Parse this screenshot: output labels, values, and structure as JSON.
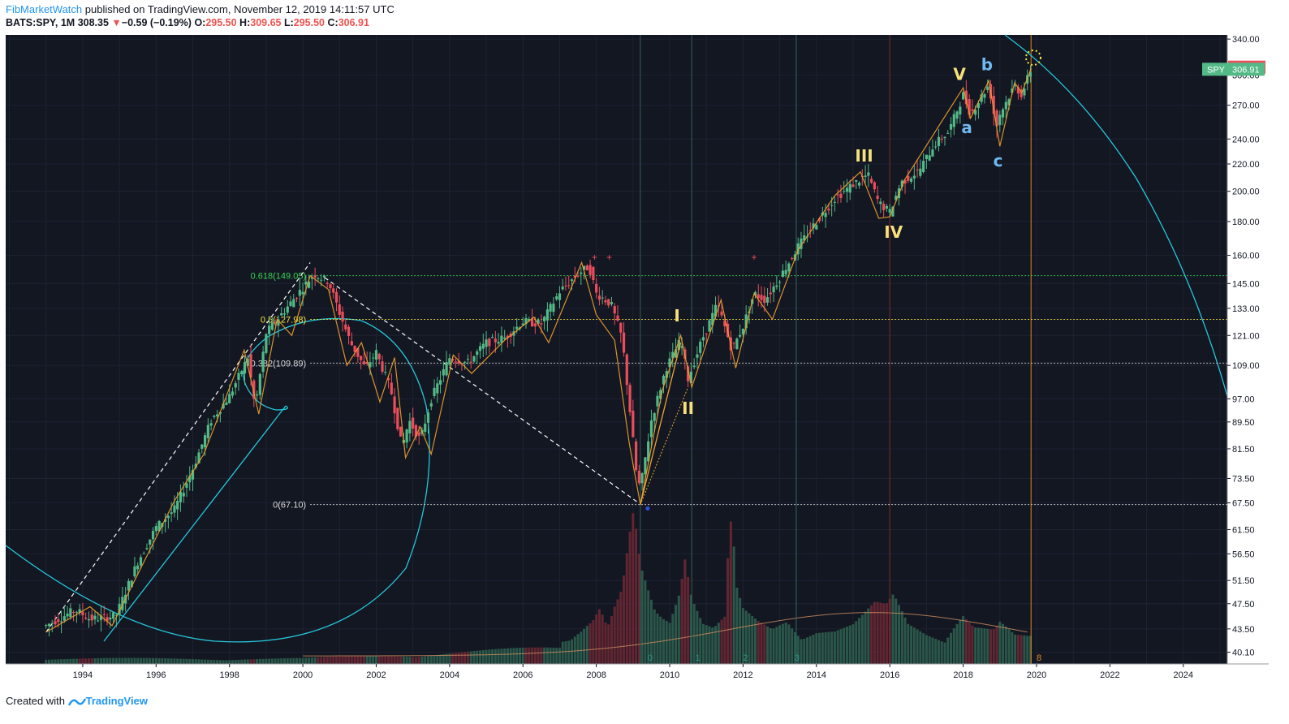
{
  "header": {
    "author": "FibMarketWatch",
    "published_text": " published on TradingView.com, November 12, 2019 14:11:57 UTC",
    "symbol": "BATS:SPY, 1M",
    "last": "308.35",
    "change_arrow": "▼",
    "change": "−0.59 (−0.19%)",
    "o_label": "O:",
    "o": "295.50",
    "h_label": "H:",
    "h": "309.65",
    "l_label": "L:",
    "l": "295.50",
    "c_label": "C:",
    "c": "306.91"
  },
  "footer": {
    "created_with": "Created with",
    "brand": "TradingView"
  },
  "colors": {
    "background": "#131722",
    "up": "#53b987",
    "down": "#eb4d5c",
    "wave": "#f0a030",
    "cyan": "#26c6da",
    "fib_green": "#39d353",
    "fib_yellow": "#f5e53d",
    "wave_label_yellow": "#f7e17d",
    "wave_label_blue": "#6fb8f0"
  },
  "chart_data": {
    "type": "candlestick",
    "ylabel": "",
    "xlabel": "",
    "log_scale": true,
    "ylim": [
      38.5,
      345
    ],
    "xlim": [
      1991.9,
      2025.2
    ],
    "x_ticks": [
      "1994",
      "1996",
      "1998",
      "2000",
      "2002",
      "2004",
      "2006",
      "2008",
      "2010",
      "2012",
      "2014",
      "2016",
      "2018",
      "2020",
      "2022",
      "2024"
    ],
    "y_ticks": [
      "340.00",
      "300.00",
      "270.00",
      "240.00",
      "220.00",
      "200.00",
      "180.00",
      "160.00",
      "145.00",
      "133.00",
      "121.00",
      "109.00",
      "97.00",
      "89.50",
      "81.50",
      "73.50",
      "67.50",
      "61.50",
      "56.50",
      "51.50",
      "47.50",
      "43.50",
      "40.10"
    ],
    "price_tags": [
      {
        "label": "308.35",
        "value": 308.35,
        "color": "#eb4d5c"
      },
      {
        "label": "SPY",
        "value_label": "306.91",
        "value": 306.91,
        "color": "#53b987"
      }
    ],
    "price_path": [
      [
        1993.0,
        44
      ],
      [
        1993.8,
        46.5
      ],
      [
        1994.2,
        45
      ],
      [
        1994.9,
        45.5
      ],
      [
        1995.5,
        55
      ],
      [
        1996.0,
        62
      ],
      [
        1996.5,
        66
      ],
      [
        1997.0,
        76
      ],
      [
        1997.5,
        90
      ],
      [
        1998.0,
        98
      ],
      [
        1998.5,
        112
      ],
      [
        1998.7,
        94
      ],
      [
        1999.0,
        122
      ],
      [
        1999.5,
        132
      ],
      [
        2000.0,
        143
      ],
      [
        2000.3,
        150
      ],
      [
        2000.7,
        146
      ],
      [
        2001.0,
        131
      ],
      [
        2001.3,
        118
      ],
      [
        2001.7,
        108
      ],
      [
        2002.0,
        114
      ],
      [
        2002.4,
        100
      ],
      [
        2002.7,
        82
      ],
      [
        2002.9,
        90
      ],
      [
        2003.2,
        84
      ],
      [
        2003.5,
        97
      ],
      [
        2004.0,
        112
      ],
      [
        2004.5,
        110
      ],
      [
        2005.0,
        118
      ],
      [
        2005.5,
        120
      ],
      [
        2006.0,
        127
      ],
      [
        2006.5,
        126
      ],
      [
        2007.0,
        141
      ],
      [
        2007.5,
        150
      ],
      [
        2007.8,
        154
      ],
      [
        2008.0,
        140
      ],
      [
        2008.4,
        135
      ],
      [
        2008.7,
        120
      ],
      [
        2008.9,
        95
      ],
      [
        2009.1,
        74
      ],
      [
        2009.2,
        71
      ],
      [
        2009.5,
        90
      ],
      [
        2009.9,
        108
      ],
      [
        2010.3,
        119
      ],
      [
        2010.5,
        104
      ],
      [
        2010.9,
        120
      ],
      [
        2011.3,
        135
      ],
      [
        2011.7,
        115
      ],
      [
        2012.0,
        125
      ],
      [
        2012.3,
        140
      ],
      [
        2012.6,
        137
      ],
      [
        2013.0,
        148
      ],
      [
        2013.5,
        165
      ],
      [
        2014.0,
        180
      ],
      [
        2014.5,
        195
      ],
      [
        2015.0,
        205
      ],
      [
        2015.4,
        212
      ],
      [
        2015.7,
        192
      ],
      [
        2016.0,
        186
      ],
      [
        2016.3,
        206
      ],
      [
        2016.8,
        215
      ],
      [
        2017.2,
        235
      ],
      [
        2017.6,
        246
      ],
      [
        2018.0,
        280
      ],
      [
        2018.2,
        262
      ],
      [
        2018.7,
        290
      ],
      [
        2018.9,
        250
      ],
      [
        2019.0,
        262
      ],
      [
        2019.4,
        289
      ],
      [
        2019.6,
        280
      ],
      [
        2019.85,
        306.9
      ]
    ],
    "wave_path": [
      [
        1993.0,
        43
      ],
      [
        1994.2,
        47
      ],
      [
        1994.8,
        44
      ],
      [
        1996.5,
        68
      ],
      [
        1997.3,
        80
      ],
      [
        1998.4,
        115
      ],
      [
        1998.8,
        92
      ],
      [
        1999.3,
        128
      ],
      [
        1999.7,
        121
      ],
      [
        2000.2,
        149
      ],
      [
        2000.7,
        142
      ],
      [
        2001.2,
        109
      ],
      [
        2001.6,
        118
      ],
      [
        2002.1,
        96
      ],
      [
        2002.5,
        112
      ],
      [
        2002.8,
        79
      ],
      [
        2003.2,
        88
      ],
      [
        2003.5,
        80
      ],
      [
        2004.1,
        113
      ],
      [
        2004.6,
        106
      ],
      [
        2005.5,
        119
      ],
      [
        2006.3,
        129
      ],
      [
        2006.7,
        118
      ],
      [
        2007.6,
        156
      ],
      [
        2008.0,
        130
      ],
      [
        2008.5,
        119
      ],
      [
        2008.9,
        83
      ],
      [
        2009.2,
        67.1
      ],
      [
        2009.8,
        100
      ],
      [
        2010.3,
        121
      ],
      [
        2010.6,
        101
      ],
      [
        2011.4,
        137
      ],
      [
        2011.8,
        108
      ],
      [
        2012.3,
        140
      ],
      [
        2012.8,
        128
      ],
      [
        2013.5,
        163
      ],
      [
        2014.5,
        197
      ],
      [
        2015.2,
        214
      ],
      [
        2015.7,
        182
      ],
      [
        2016.0,
        183
      ],
      [
        2016.4,
        208
      ],
      [
        2018.0,
        287
      ],
      [
        2018.2,
        258
      ],
      [
        2018.7,
        294
      ],
      [
        2019.0,
        234
      ],
      [
        2019.4,
        292
      ],
      [
        2019.6,
        282
      ],
      [
        2019.85,
        306.9
      ]
    ],
    "volume": [
      [
        2007.0,
        0.12
      ],
      [
        2007.3,
        0.14
      ],
      [
        2007.6,
        0.21
      ],
      [
        2007.9,
        0.3
      ],
      [
        2008.1,
        0.42
      ],
      [
        2008.3,
        0.3
      ],
      [
        2008.5,
        0.45
      ],
      [
        2008.7,
        0.55
      ],
      [
        2008.8,
        0.72
      ],
      [
        2008.9,
        0.88
      ],
      [
        2009.0,
        1.0
      ],
      [
        2009.1,
        0.85
      ],
      [
        2009.2,
        0.62
      ],
      [
        2009.4,
        0.45
      ],
      [
        2009.6,
        0.3
      ],
      [
        2009.8,
        0.25
      ],
      [
        2010.0,
        0.22
      ],
      [
        2010.3,
        0.38
      ],
      [
        2010.4,
        0.55
      ],
      [
        2010.6,
        0.33
      ],
      [
        2010.9,
        0.2
      ],
      [
        2011.2,
        0.18
      ],
      [
        2011.5,
        0.24
      ],
      [
        2011.6,
        0.6
      ],
      [
        2011.7,
        0.8
      ],
      [
        2011.8,
        0.42
      ],
      [
        2012.0,
        0.3
      ],
      [
        2012.4,
        0.25
      ],
      [
        2012.8,
        0.22
      ],
      [
        2013.2,
        0.3
      ],
      [
        2013.6,
        0.2
      ],
      [
        2014.0,
        0.22
      ],
      [
        2014.5,
        0.2
      ],
      [
        2015.0,
        0.22
      ],
      [
        2015.6,
        0.32
      ],
      [
        2015.9,
        0.3
      ],
      [
        2016.1,
        0.35
      ],
      [
        2016.5,
        0.2
      ],
      [
        2017.0,
        0.15
      ],
      [
        2017.5,
        0.12
      ],
      [
        2018.0,
        0.3
      ],
      [
        2018.3,
        0.25
      ],
      [
        2018.8,
        0.28
      ],
      [
        2019.0,
        0.33
      ],
      [
        2019.4,
        0.2
      ],
      [
        2019.8,
        0.17
      ]
    ],
    "fib_levels": [
      {
        "label": "0.618(149.05)",
        "value": 149.05,
        "color": "#39d353"
      },
      {
        "label": "0.5(127.98)",
        "value": 127.98,
        "color": "#f5e53d"
      },
      {
        "label": "0.382(109.89)",
        "value": 109.89,
        "color": "#dddddd"
      },
      {
        "label": "0(67.10)",
        "value": 67.1,
        "color": "#dddddd"
      }
    ],
    "wave_labels": [
      {
        "text": "I",
        "x": 2010.2,
        "y": 127,
        "color": "#f7e17d"
      },
      {
        "text": "II",
        "x": 2010.5,
        "y": 92,
        "color": "#f7e17d"
      },
      {
        "text": "III",
        "x": 2015.3,
        "y": 222,
        "color": "#f7e17d"
      },
      {
        "text": "IV",
        "x": 2016.1,
        "y": 170,
        "color": "#f7e17d"
      },
      {
        "text": "V",
        "x": 2017.9,
        "y": 295,
        "color": "#f7e17d"
      },
      {
        "text": "b",
        "x": 2018.65,
        "y": 305,
        "color": "#6fb8f0"
      },
      {
        "text": "a",
        "x": 2018.1,
        "y": 245,
        "color": "#6fb8f0"
      },
      {
        "text": "c",
        "x": 2018.95,
        "y": 218,
        "color": "#6fb8f0"
      }
    ],
    "cycle_labels": [
      {
        "text": "0",
        "x": 2009.4
      },
      {
        "text": "1",
        "x": 2010.7
      },
      {
        "text": "2",
        "x": 2012.0
      },
      {
        "text": "3",
        "x": 2013.4
      },
      {
        "text": "8",
        "x": 2020.0
      }
    ]
  }
}
